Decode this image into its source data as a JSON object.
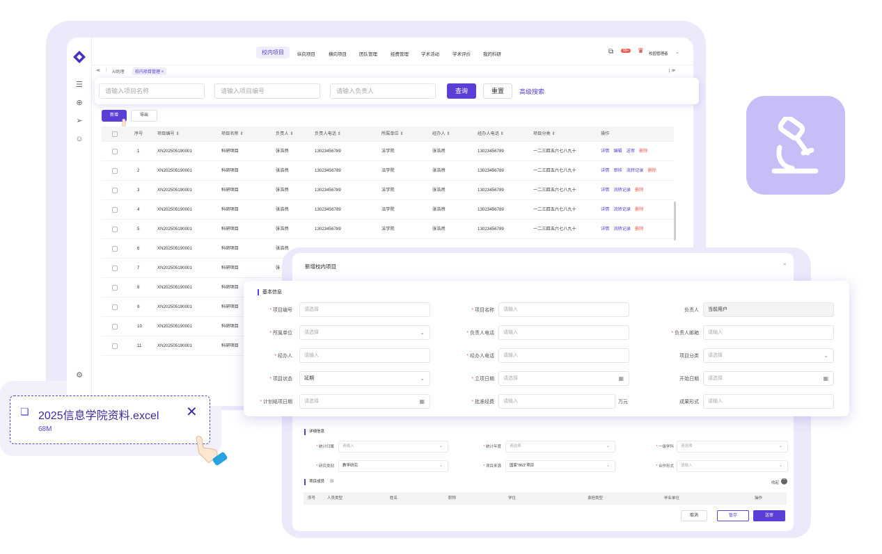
{
  "topnav": {
    "items": [
      "校内项目",
      "纵向项目",
      "横向项目",
      "团队管理",
      "经费管理",
      "学术活动",
      "学术评价",
      "我的科研"
    ],
    "user": "校园管理者",
    "badge": "99+"
  },
  "tabs": {
    "home": "AI助理",
    "current": "校内项目管理",
    "collapse_left": "≪",
    "collapse_right": "| ≫"
  },
  "search": {
    "name_placeholder": "请输入项目名称",
    "code_placeholder": "请输入项目编号",
    "owner_placeholder": "请输入负责人",
    "query": "查询",
    "reset": "重置",
    "advanced": "高级搜索"
  },
  "toolbar": {
    "new": "新增",
    "export": "导出"
  },
  "table": {
    "columns": [
      "序号",
      "项目编号 ⇕",
      "项目名称 ⇕",
      "负责人 ⇕",
      "负责人电话 ⇕",
      "所属单位 ⇕",
      "经办人 ⇕",
      "经办人电话 ⇕",
      "项目分类 ⇕",
      "操作"
    ],
    "rows": [
      {
        "no": "1",
        "code": "XN202505190001",
        "name": "科研项目",
        "owner": "张浩然",
        "phone": "13023456789",
        "unit": "法学院",
        "agent": "张浩然",
        "agent_phone": "13023456789",
        "category": "一二三四五六七八九十",
        "actions": [
          "详情",
          "编辑",
          "送审",
          "删除"
        ]
      },
      {
        "no": "2",
        "code": "XN202505190001",
        "name": "科研项目",
        "owner": "张浩然",
        "phone": "13023456789",
        "unit": "法学院",
        "agent": "张浩然",
        "agent_phone": "13023456789",
        "category": "一二三四五六七八九十",
        "actions": [
          "详情",
          "审核",
          "流转记录",
          "删除"
        ]
      },
      {
        "no": "3",
        "code": "XN202505190001",
        "name": "科研项目",
        "owner": "张浩然",
        "phone": "13023456789",
        "unit": "法学院",
        "agent": "张浩然",
        "agent_phone": "13023456789",
        "category": "一二三四五六七八九十",
        "actions": [
          "详情",
          "流转记录",
          "删除"
        ]
      },
      {
        "no": "4",
        "code": "XN202505190001",
        "name": "科研项目",
        "owner": "张浩然",
        "phone": "13023456789",
        "unit": "法学院",
        "agent": "张浩然",
        "agent_phone": "13023456789",
        "category": "一二三四五六七八九十",
        "actions": [
          "详情",
          "流转记录",
          "删除"
        ]
      },
      {
        "no": "5",
        "code": "XN202505190001",
        "name": "科研项目",
        "owner": "张浩然",
        "phone": "13023456789",
        "unit": "法学院",
        "agent": "张浩然",
        "agent_phone": "13023456789",
        "category": "一二三四五六七八九十",
        "actions": [
          "详情",
          "流转记录",
          "删除"
        ]
      },
      {
        "no": "6",
        "code": "XN202505190001",
        "name": "科研项目",
        "owner": "张浩然",
        "phone": "",
        "unit": "",
        "agent": "",
        "agent_phone": "",
        "category": "",
        "actions": []
      },
      {
        "no": "7",
        "code": "XN202505190001",
        "name": "科研项目",
        "owner": "张",
        "phone": "",
        "unit": "",
        "agent": "",
        "agent_phone": "",
        "category": "",
        "actions": []
      },
      {
        "no": "8",
        "code": "XN202505190001",
        "name": "科研项目",
        "owner": "",
        "phone": "",
        "unit": "",
        "agent": "",
        "agent_phone": "",
        "category": "",
        "actions": []
      },
      {
        "no": "9",
        "code": "XN202505190001",
        "name": "科研项目",
        "owner": "",
        "phone": "",
        "unit": "",
        "agent": "",
        "agent_phone": "",
        "category": "",
        "actions": []
      },
      {
        "no": "10",
        "code": "XN202505190001",
        "name": "科研项目",
        "owner": "",
        "phone": "",
        "unit": "",
        "agent": "",
        "agent_phone": "",
        "category": "",
        "actions": []
      },
      {
        "no": "11",
        "code": "XN202505190001",
        "name": "科研项目",
        "owner": "",
        "phone": "",
        "unit": "",
        "agent": "",
        "agent_phone": "",
        "category": "",
        "actions": []
      }
    ]
  },
  "dialog": {
    "title": "新增校内项目",
    "close": "×",
    "basic_section": "基本信息",
    "fields": {
      "code_label": "项目编号",
      "code_ph": "请选择",
      "name_label": "项目名称",
      "name_ph": "请输入",
      "owner_label": "负责人",
      "owner_value": "当前用户",
      "unit_label": "所属单位",
      "unit_ph": "请选择",
      "owner_phone_label": "负责人电话",
      "owner_phone_ph": "请输入",
      "owner_email_label": "负责人邮箱",
      "owner_email_ph": "请输入",
      "agent_label": "经办人",
      "agent_ph": "请输入",
      "agent_phone_label": "经办人电话",
      "agent_phone_ph": "请输入",
      "category_label": "项目分类",
      "category_ph": "请选择",
      "status_label": "项目状态",
      "status_value": "延期",
      "setup_date_label": "立项日期",
      "setup_date_ph": "请选择",
      "start_date_label": "开始日期",
      "start_date_ph": "请选择",
      "end_date_label": "计划结项日期",
      "end_date_ph": "请选择",
      "fund_label": "批准经费",
      "fund_ph": "请输入",
      "fund_unit": "万元",
      "result_label": "成果形式",
      "result_ph": "请输入"
    },
    "detail_section": "详细信息",
    "detail": {
      "stat_label": "统计归属",
      "stat_ph": "请输入",
      "year_label": "统计年度",
      "year_ph": "请选择",
      "discipline_label": "一级学科",
      "discipline_ph": "请选择",
      "type_label": "研究类别",
      "type_value": "教学研究",
      "source_label": "项目来源",
      "source_value": "国家\"863\"项目",
      "coop_label": "合作形式",
      "coop_ph": "请输入"
    },
    "member_section": "项目成员",
    "collapse": "收起",
    "member_columns": [
      "序号",
      "人员类型",
      "姓名",
      "职称",
      "学位",
      "承担类型",
      "毕业单位",
      "操作"
    ],
    "buttons": {
      "cancel": "取消",
      "draft": "暂存",
      "submit": "送审"
    }
  },
  "file": {
    "name": "2025信息学院资料.excel",
    "size": "68M",
    "close": "✕"
  },
  "colors": {
    "accent": "#5b3ed6",
    "tile": "#c7bdf7",
    "frame": "#ece9fb",
    "danger": "#e85a4f"
  }
}
